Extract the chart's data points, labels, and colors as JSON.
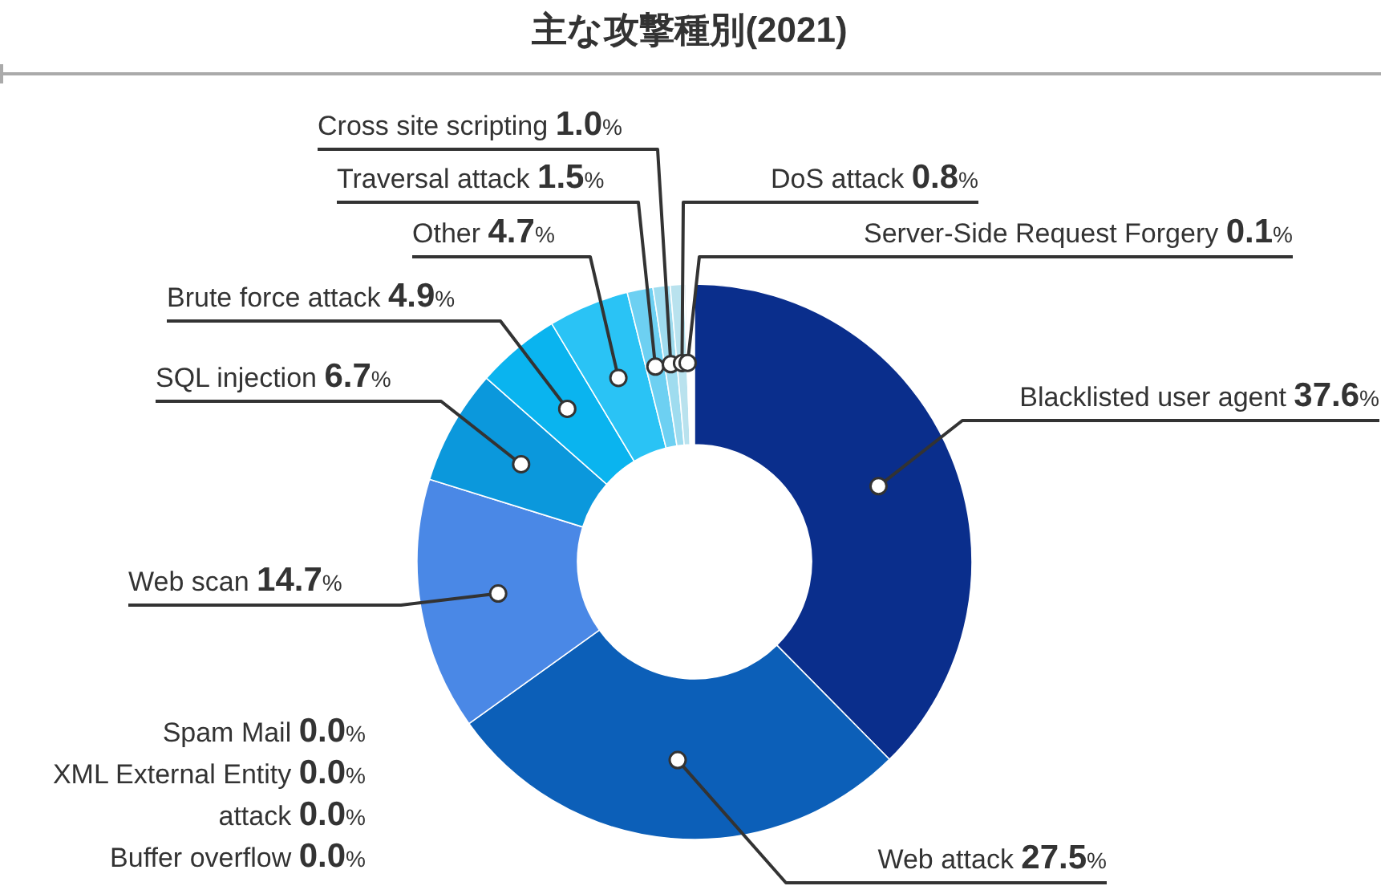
{
  "chart_data": {
    "type": "donut",
    "title": "主な攻撃種別(2021)",
    "categories": [
      "Blacklisted user agent",
      "Web attack",
      "Web scan",
      "SQL injection",
      "Brute force attack",
      "Other",
      "Traversal attack",
      "Cross site scripting",
      "DoS attack",
      "Server-Side Request Forgery",
      "Spam Mail",
      "XML External Entity",
      "attack",
      "Buffer overflow"
    ],
    "values": [
      37.6,
      27.5,
      14.7,
      6.7,
      4.9,
      4.7,
      1.5,
      1.0,
      0.8,
      0.1,
      0,
      0,
      0,
      0
    ],
    "value_labels": [
      "37.6%",
      "27.5%",
      "14.7%",
      "6.7%",
      "4.9%",
      "4.7%",
      "1.5%",
      "1.0%",
      "0.8%",
      "0.1%",
      "0.0%",
      "0.0%",
      "0.0%",
      "0.0%"
    ],
    "colors": [
      "#0a2e8c",
      "#0c5fb8",
      "#4a88e6",
      "#0b98dc",
      "#0ab4ef",
      "#2ac3f5",
      "#6dd0f2",
      "#9fdcef",
      "#b9e2ee",
      "#d2e7ee",
      "#d2e7ee",
      "#d2e7ee",
      "#d2e7ee",
      "#d2e7ee"
    ]
  }
}
